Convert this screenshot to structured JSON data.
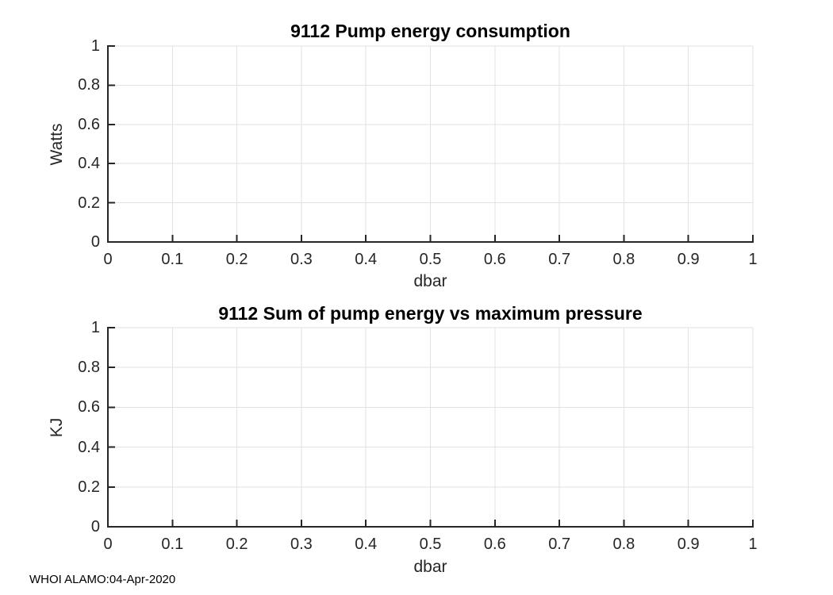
{
  "figure": {
    "footer_text": "WHOI ALAMO:04-Apr-2020",
    "background_color": "#ffffff",
    "axis_color": "#262626",
    "grid_color": "#e2e2e2",
    "title_color": "#000000"
  },
  "chart_data": [
    {
      "type": "line",
      "title": "9112 Pump energy consumption",
      "xlabel": "dbar",
      "ylabel": "Watts",
      "xlim": [
        0,
        1
      ],
      "ylim": [
        0,
        1
      ],
      "xticks": [
        0,
        0.1,
        0.2,
        0.3,
        0.4,
        0.5,
        0.6,
        0.7,
        0.8,
        0.9,
        1
      ],
      "xtick_labels": [
        "0",
        "0.1",
        "0.2",
        "0.3",
        "0.4",
        "0.5",
        "0.6",
        "0.7",
        "0.8",
        "0.9",
        "1"
      ],
      "yticks": [
        0,
        0.2,
        0.4,
        0.6,
        0.8,
        1
      ],
      "ytick_labels": [
        "0",
        "0.2",
        "0.4",
        "0.6",
        "0.8",
        "1"
      ],
      "grid": true,
      "legend": null,
      "series": []
    },
    {
      "type": "line",
      "title": "9112 Sum of pump energy vs maximum pressure",
      "xlabel": "dbar",
      "ylabel": "KJ",
      "xlim": [
        0,
        1
      ],
      "ylim": [
        0,
        1
      ],
      "xticks": [
        0,
        0.1,
        0.2,
        0.3,
        0.4,
        0.5,
        0.6,
        0.7,
        0.8,
        0.9,
        1
      ],
      "xtick_labels": [
        "0",
        "0.1",
        "0.2",
        "0.3",
        "0.4",
        "0.5",
        "0.6",
        "0.7",
        "0.8",
        "0.9",
        "1"
      ],
      "yticks": [
        0,
        0.2,
        0.4,
        0.6,
        0.8,
        1
      ],
      "ytick_labels": [
        "0",
        "0.2",
        "0.4",
        "0.6",
        "0.8",
        "1"
      ],
      "grid": true,
      "legend": null,
      "series": []
    }
  ]
}
